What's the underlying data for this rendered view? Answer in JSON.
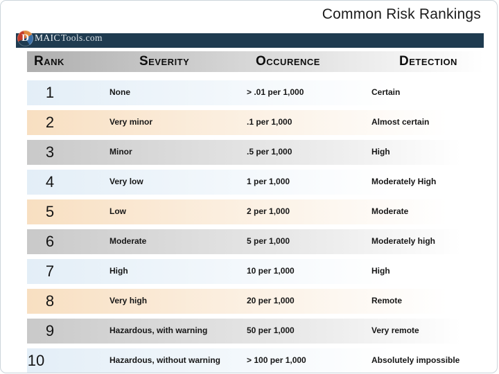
{
  "slide": {
    "title": "Common Risk Rankings"
  },
  "logo": {
    "circle_letter": "D",
    "brand": "MAIC",
    "suffix": "Tools.com"
  },
  "colors": {
    "navy": "#1f3b50",
    "row_blue": "#e3eef7",
    "row_peach": "#f8dfc1",
    "row_gray": "#c9c9c9",
    "text": "#1a1a1a"
  },
  "table": {
    "headers": [
      "Rank",
      "Severity",
      "Occurence",
      "Detection"
    ],
    "rows": [
      {
        "rank": "1",
        "severity": "None",
        "occurrence": "> .01 per 1,000",
        "detection": "Certain"
      },
      {
        "rank": "2",
        "severity": "Very minor",
        "occurrence": ".1 per 1,000",
        "detection": "Almost certain"
      },
      {
        "rank": "3",
        "severity": "Minor",
        "occurrence": ".5 per 1,000",
        "detection": "High"
      },
      {
        "rank": "4",
        "severity": "Very low",
        "occurrence": "1 per 1,000",
        "detection": "Moderately High"
      },
      {
        "rank": "5",
        "severity": "Low",
        "occurrence": "2 per 1,000",
        "detection": "Moderate"
      },
      {
        "rank": "6",
        "severity": "Moderate",
        "occurrence": "5 per 1,000",
        "detection": "Moderately high"
      },
      {
        "rank": "7",
        "severity": "High",
        "occurrence": "10 per 1,000",
        "detection": "High"
      },
      {
        "rank": "8",
        "severity": "Very high",
        "occurrence": "20 per 1,000",
        "detection": "Remote"
      },
      {
        "rank": "9",
        "severity": "Hazardous, with warning",
        "occurrence": "50 per 1,000",
        "detection": "Very remote"
      },
      {
        "rank": "10",
        "severity": "Hazardous, without warning",
        "occurrence": "> 100 per 1,000",
        "detection": "Absolutely impossible"
      }
    ]
  }
}
